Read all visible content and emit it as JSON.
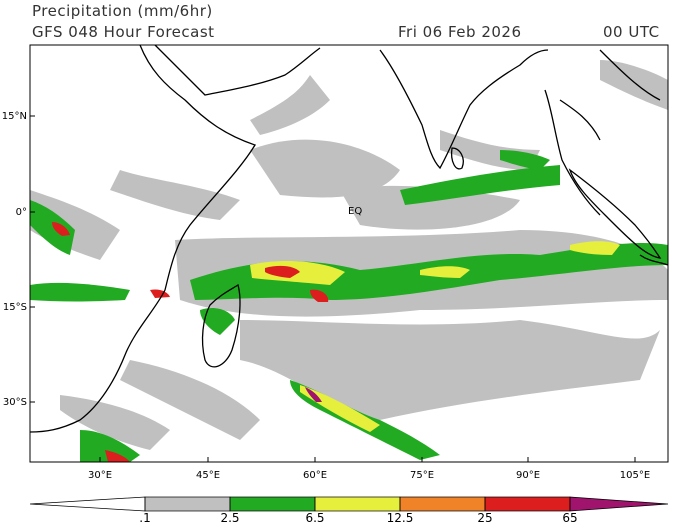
{
  "header": {
    "title": "Precipitation (mm/6hr)",
    "subtitle": "GFS 048 Hour Forecast",
    "date": "Fri 06 Feb 2026",
    "time": "00 UTC"
  },
  "map": {
    "lat_labels": [
      "15°N",
      "0°",
      "15°S",
      "30°S"
    ],
    "lon_labels": [
      "30°E",
      "45°E",
      "60°E",
      "75°E",
      "90°E",
      "105°E"
    ],
    "annotation": "EQ"
  },
  "colorbar": {
    "levels": [
      {
        "value": 0.1,
        "label": ".1"
      },
      2.5,
      6.5,
      12.5,
      25,
      65
    ],
    "colors": [
      "#ffffff",
      "#c0c0c0",
      "#22aa22",
      "#e6f03c",
      "#f08228",
      "#dc1e1e",
      "#a0146e"
    ]
  }
}
